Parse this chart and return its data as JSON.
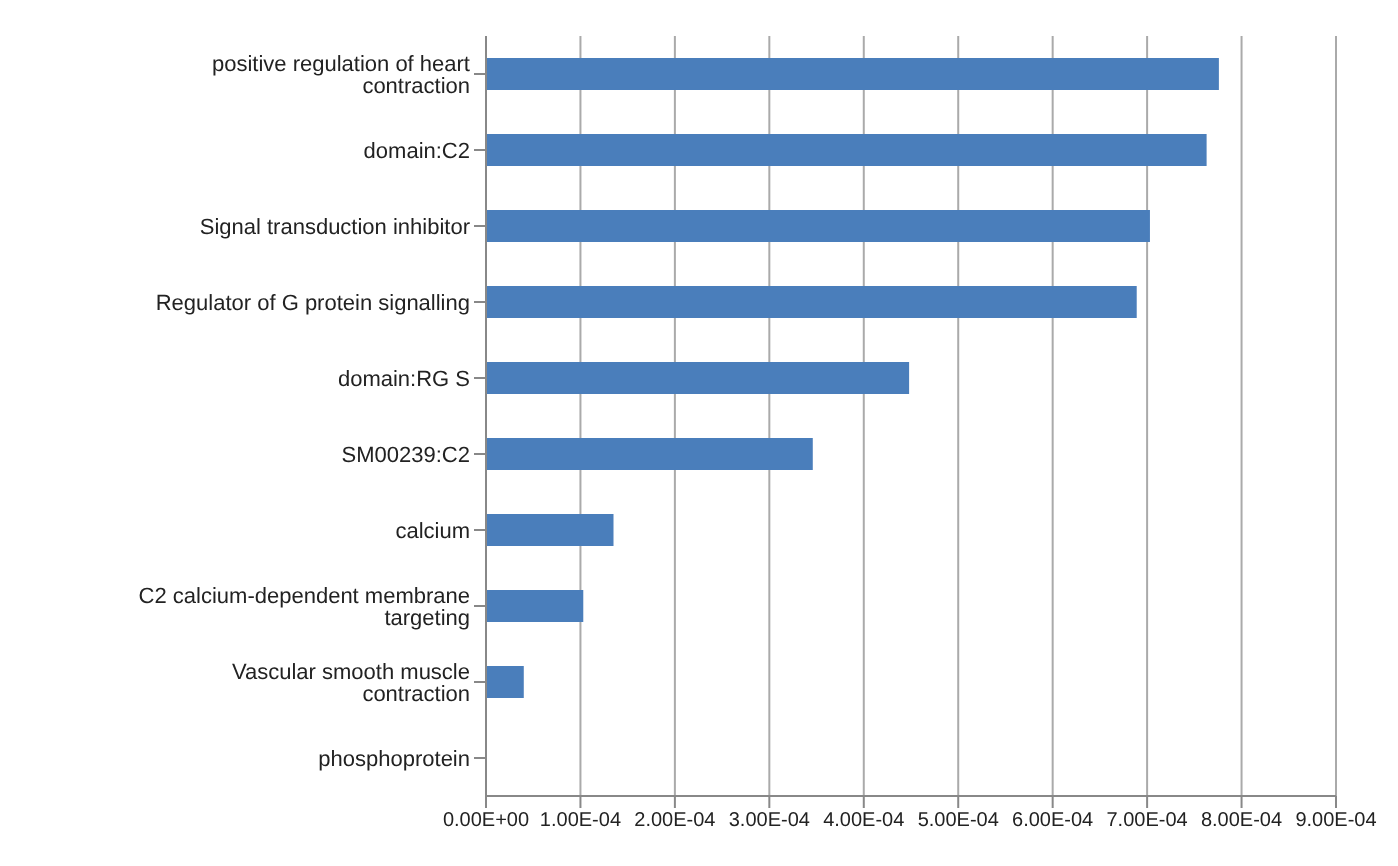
{
  "chart_data": {
    "type": "bar",
    "orientation": "horizontal",
    "categories": [
      "positive regulation of heart contraction",
      "domain:C2",
      "Signal transduction inhibitor",
      "Regulator of G protein signalling",
      "domain:RG S",
      "SM00239:C2",
      "calcium",
      "C2 calcium-dependent membrane targeting",
      "Vascular smooth muscle contraction",
      "phosphoprotein"
    ],
    "values": [
      0.000776,
      0.000763,
      0.000703,
      0.000689,
      0.000448,
      0.000346,
      0.000135,
      0.000103,
      4e-05,
      1e-06
    ],
    "color": "#4a7ebb",
    "xlim": [
      0,
      0.0009
    ],
    "xticks": [
      {
        "value": 0,
        "label": "0.00E+00"
      },
      {
        "value": 0.0001,
        "label": "1.00E-04"
      },
      {
        "value": 0.0002,
        "label": "2.00E-04"
      },
      {
        "value": 0.0003,
        "label": "3.00E-04"
      },
      {
        "value": 0.0004,
        "label": "4.00E-04"
      },
      {
        "value": 0.0005,
        "label": "5.00E-04"
      },
      {
        "value": 0.0006,
        "label": "6.00E-04"
      },
      {
        "value": 0.0007,
        "label": "7.00E-04"
      },
      {
        "value": 0.0008,
        "label": "8.00E-04"
      },
      {
        "value": 0.0009,
        "label": "9.00E-04"
      }
    ],
    "grid": "x"
  }
}
